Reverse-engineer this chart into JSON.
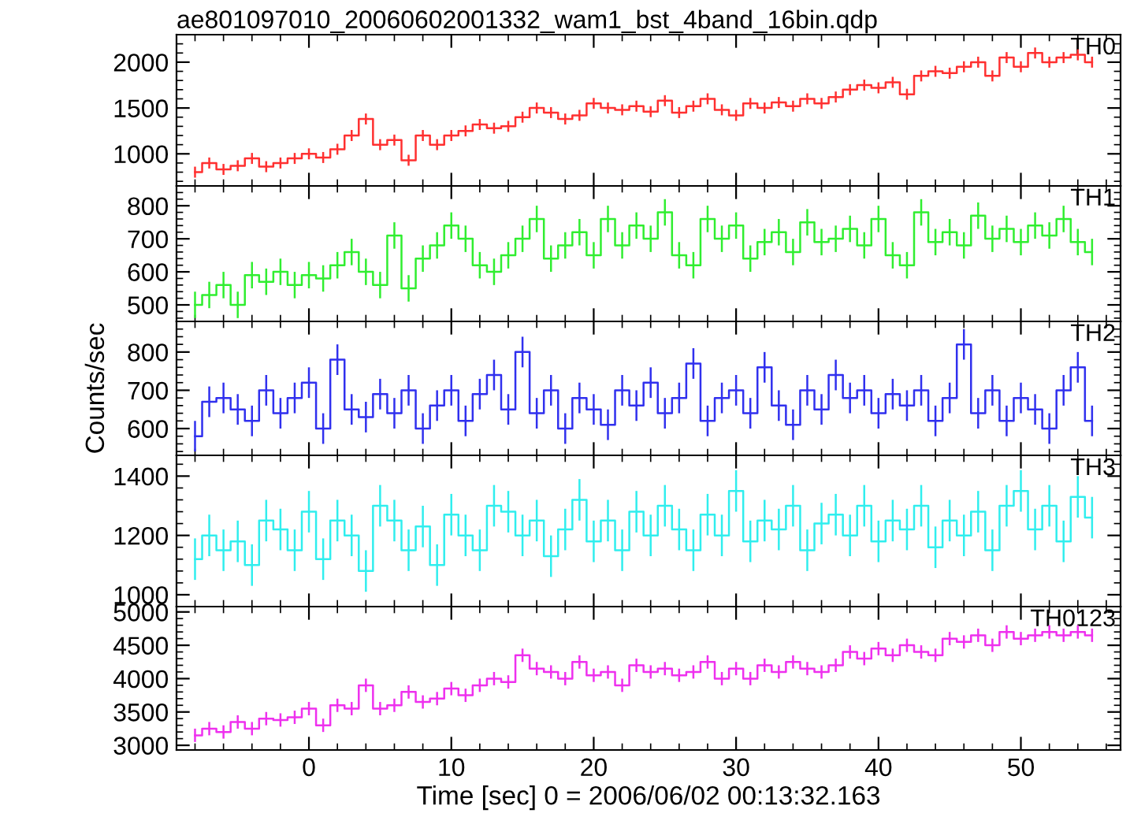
{
  "chart_data": [
    {
      "type": "step",
      "title": "ae801097010_20060602001332_wam1_bst_4band_16bin.qdp",
      "x": [
        -8,
        -7,
        -6,
        -5,
        -4,
        -3,
        -2,
        -1,
        0,
        1,
        2,
        3,
        4,
        5,
        6,
        7,
        8,
        9,
        10,
        11,
        12,
        13,
        14,
        15,
        16,
        17,
        18,
        19,
        20,
        21,
        22,
        23,
        24,
        25,
        26,
        27,
        28,
        29,
        30,
        31,
        32,
        33,
        34,
        35,
        36,
        37,
        38,
        39,
        40,
        41,
        42,
        43,
        44,
        45,
        46,
        47,
        48,
        49,
        50,
        51,
        52,
        53,
        54,
        55
      ],
      "xlim": [
        -9.3,
        57
      ],
      "xticks": [
        0,
        10,
        20,
        30,
        40,
        50
      ],
      "ylim": [
        650,
        2300
      ],
      "yticks": [
        1000,
        1500,
        2000
      ],
      "tick_labels": "y",
      "series": [
        {
          "name": "TH0",
          "color": "#ff3030",
          "values": [
            800,
            900,
            830,
            870,
            950,
            860,
            900,
            950,
            1000,
            960,
            1050,
            1200,
            1380,
            1100,
            1150,
            930,
            1200,
            1100,
            1200,
            1250,
            1320,
            1280,
            1300,
            1400,
            1500,
            1450,
            1380,
            1420,
            1550,
            1500,
            1480,
            1520,
            1460,
            1580,
            1450,
            1520,
            1600,
            1480,
            1420,
            1550,
            1500,
            1560,
            1520,
            1600,
            1550,
            1620,
            1700,
            1750,
            1720,
            1780,
            1650,
            1850,
            1900,
            1880,
            1950,
            2000,
            1850,
            2050,
            1950,
            2100,
            2000,
            2050,
            2080,
            2000
          ],
          "errors": [
            60,
            60,
            60,
            60,
            60,
            60,
            60,
            60,
            60,
            60,
            60,
            60,
            60,
            60,
            60,
            60,
            60,
            60,
            60,
            60,
            60,
            60,
            60,
            60,
            60,
            60,
            60,
            60,
            60,
            60,
            60,
            60,
            60,
            60,
            60,
            60,
            60,
            60,
            60,
            60,
            60,
            60,
            60,
            60,
            60,
            60,
            60,
            60,
            60,
            60,
            60,
            60,
            60,
            60,
            60,
            60,
            60,
            60,
            60,
            60,
            60,
            60,
            60,
            60
          ]
        }
      ]
    },
    {
      "type": "step",
      "x": [
        -8,
        -7,
        -6,
        -5,
        -4,
        -3,
        -2,
        -1,
        0,
        1,
        2,
        3,
        4,
        5,
        6,
        7,
        8,
        9,
        10,
        11,
        12,
        13,
        14,
        15,
        16,
        17,
        18,
        19,
        20,
        21,
        22,
        23,
        24,
        25,
        26,
        27,
        28,
        29,
        30,
        31,
        32,
        33,
        34,
        35,
        36,
        37,
        38,
        39,
        40,
        41,
        42,
        43,
        44,
        45,
        46,
        47,
        48,
        49,
        50,
        51,
        52,
        53,
        54,
        55
      ],
      "xlim": [
        -9.3,
        57
      ],
      "xticks": [
        0,
        10,
        20,
        30,
        40,
        50
      ],
      "ylim": [
        450,
        860
      ],
      "yticks": [
        500,
        600,
        700,
        800
      ],
      "tick_labels": "y",
      "series": [
        {
          "name": "TH1",
          "color": "#30ee30",
          "values": [
            500,
            530,
            560,
            500,
            590,
            570,
            600,
            560,
            590,
            580,
            620,
            660,
            600,
            560,
            710,
            550,
            640,
            680,
            740,
            700,
            620,
            600,
            650,
            700,
            760,
            640,
            680,
            720,
            650,
            760,
            680,
            740,
            700,
            780,
            650,
            620,
            760,
            700,
            740,
            640,
            690,
            720,
            660,
            750,
            690,
            700,
            730,
            680,
            760,
            650,
            620,
            780,
            690,
            720,
            680,
            770,
            700,
            730,
            690,
            740,
            710,
            760,
            690,
            660
          ],
          "errors": [
            40,
            40,
            40,
            40,
            40,
            40,
            40,
            40,
            40,
            40,
            40,
            40,
            40,
            40,
            40,
            40,
            40,
            40,
            40,
            40,
            40,
            40,
            40,
            40,
            40,
            40,
            40,
            40,
            40,
            40,
            40,
            40,
            40,
            40,
            40,
            40,
            40,
            40,
            40,
            40,
            40,
            40,
            40,
            40,
            40,
            40,
            40,
            40,
            40,
            40,
            40,
            40,
            40,
            40,
            40,
            40,
            40,
            40,
            40,
            40,
            40,
            40,
            40,
            40
          ]
        }
      ]
    },
    {
      "type": "step",
      "ylabel": "Counts/sec",
      "x": [
        -8,
        -7,
        -6,
        -5,
        -4,
        -3,
        -2,
        -1,
        0,
        1,
        2,
        3,
        4,
        5,
        6,
        7,
        8,
        9,
        10,
        11,
        12,
        13,
        14,
        15,
        16,
        17,
        18,
        19,
        20,
        21,
        22,
        23,
        24,
        25,
        26,
        27,
        28,
        29,
        30,
        31,
        32,
        33,
        34,
        35,
        36,
        37,
        38,
        39,
        40,
        41,
        42,
        43,
        44,
        45,
        46,
        47,
        48,
        49,
        50,
        51,
        52,
        53,
        54,
        55
      ],
      "xlim": [
        -9.3,
        57
      ],
      "xticks": [
        0,
        10,
        20,
        30,
        40,
        50
      ],
      "ylim": [
        530,
        880
      ],
      "yticks": [
        600,
        700,
        800
      ],
      "tick_labels": "y",
      "series": [
        {
          "name": "TH2",
          "color": "#3030ee",
          "values": [
            580,
            670,
            680,
            650,
            620,
            700,
            640,
            680,
            720,
            600,
            780,
            650,
            630,
            690,
            640,
            700,
            600,
            660,
            700,
            620,
            690,
            740,
            650,
            800,
            640,
            700,
            600,
            680,
            650,
            610,
            700,
            660,
            720,
            640,
            680,
            770,
            620,
            680,
            700,
            640,
            760,
            660,
            610,
            700,
            650,
            740,
            680,
            700,
            640,
            690,
            660,
            700,
            620,
            680,
            820,
            640,
            700,
            620,
            680,
            650,
            600,
            700,
            760,
            620
          ],
          "errors": [
            40,
            40,
            40,
            40,
            40,
            40,
            40,
            40,
            40,
            40,
            40,
            40,
            40,
            40,
            40,
            40,
            40,
            40,
            40,
            40,
            40,
            40,
            40,
            40,
            40,
            40,
            40,
            40,
            40,
            40,
            40,
            40,
            40,
            40,
            40,
            40,
            40,
            40,
            40,
            40,
            40,
            40,
            40,
            40,
            40,
            40,
            40,
            40,
            40,
            40,
            40,
            40,
            40,
            40,
            40,
            40,
            40,
            40,
            40,
            40,
            40,
            40,
            40,
            40
          ]
        }
      ]
    },
    {
      "type": "step",
      "x": [
        -8,
        -7,
        -6,
        -5,
        -4,
        -3,
        -2,
        -1,
        0,
        1,
        2,
        3,
        4,
        5,
        6,
        7,
        8,
        9,
        10,
        11,
        12,
        13,
        14,
        15,
        16,
        17,
        18,
        19,
        20,
        21,
        22,
        23,
        24,
        25,
        26,
        27,
        28,
        29,
        30,
        31,
        32,
        33,
        34,
        35,
        36,
        37,
        38,
        39,
        40,
        41,
        42,
        43,
        44,
        45,
        46,
        47,
        48,
        49,
        50,
        51,
        52,
        53,
        54,
        55
      ],
      "xlim": [
        -9.3,
        57
      ],
      "xticks": [
        0,
        10,
        20,
        30,
        40,
        50
      ],
      "ylim": [
        960,
        1470
      ],
      "yticks": [
        1000,
        1200,
        1400
      ],
      "tick_labels": "y",
      "series": [
        {
          "name": "TH3",
          "color": "#30eeee",
          "values": [
            1120,
            1200,
            1150,
            1180,
            1100,
            1250,
            1220,
            1150,
            1280,
            1120,
            1250,
            1200,
            1080,
            1300,
            1250,
            1150,
            1230,
            1100,
            1270,
            1200,
            1150,
            1300,
            1280,
            1200,
            1250,
            1130,
            1220,
            1320,
            1180,
            1250,
            1150,
            1280,
            1200,
            1300,
            1220,
            1150,
            1270,
            1200,
            1350,
            1180,
            1250,
            1220,
            1300,
            1150,
            1240,
            1270,
            1200,
            1300,
            1180,
            1250,
            1220,
            1300,
            1160,
            1250,
            1200,
            1280,
            1150,
            1300,
            1350,
            1220,
            1300,
            1180,
            1330,
            1260
          ],
          "errors": [
            70,
            70,
            70,
            70,
            70,
            70,
            70,
            70,
            70,
            70,
            70,
            70,
            70,
            70,
            70,
            70,
            70,
            70,
            70,
            70,
            70,
            70,
            70,
            70,
            70,
            70,
            70,
            70,
            70,
            70,
            70,
            70,
            70,
            70,
            70,
            70,
            70,
            70,
            70,
            70,
            70,
            70,
            70,
            70,
            70,
            70,
            70,
            70,
            70,
            70,
            70,
            70,
            70,
            70,
            70,
            70,
            70,
            70,
            70,
            70,
            70,
            70,
            70,
            70
          ]
        }
      ]
    },
    {
      "type": "step",
      "xlabel": "Time [sec] 0 = 2006/06/02 00:13:32.163",
      "x": [
        -8,
        -7,
        -6,
        -5,
        -4,
        -3,
        -2,
        -1,
        0,
        1,
        2,
        3,
        4,
        5,
        6,
        7,
        8,
        9,
        10,
        11,
        12,
        13,
        14,
        15,
        16,
        17,
        18,
        19,
        20,
        21,
        22,
        23,
        24,
        25,
        26,
        27,
        28,
        29,
        30,
        31,
        32,
        33,
        34,
        35,
        36,
        37,
        38,
        39,
        40,
        41,
        42,
        43,
        44,
        45,
        46,
        47,
        48,
        49,
        50,
        51,
        52,
        53,
        54,
        55
      ],
      "xlim": [
        -9.3,
        57
      ],
      "xticks": [
        0,
        10,
        20,
        30,
        40,
        50
      ],
      "ylim": [
        2930,
        5080
      ],
      "yticks": [
        3000,
        3500,
        4000,
        4500,
        5000
      ],
      "series": [
        {
          "name": "TH0123",
          "color": "#ee30ee",
          "values": [
            3150,
            3250,
            3200,
            3350,
            3250,
            3400,
            3380,
            3420,
            3550,
            3300,
            3600,
            3550,
            3900,
            3550,
            3600,
            3800,
            3650,
            3700,
            3850,
            3750,
            3900,
            4000,
            3950,
            4350,
            4150,
            4100,
            4000,
            4250,
            4050,
            4100,
            3900,
            4200,
            4100,
            4150,
            4050,
            4100,
            4250,
            4000,
            4150,
            4000,
            4200,
            4100,
            4250,
            4150,
            4100,
            4200,
            4400,
            4300,
            4450,
            4350,
            4500,
            4400,
            4350,
            4600,
            4550,
            4650,
            4500,
            4700,
            4600,
            4650,
            4700,
            4650,
            4700,
            4650
          ],
          "errors": [
            100,
            100,
            100,
            100,
            100,
            100,
            100,
            100,
            100,
            100,
            100,
            100,
            100,
            100,
            100,
            100,
            100,
            100,
            100,
            100,
            100,
            100,
            100,
            100,
            100,
            100,
            100,
            100,
            100,
            100,
            100,
            100,
            100,
            100,
            100,
            100,
            100,
            100,
            100,
            100,
            100,
            100,
            100,
            100,
            100,
            100,
            100,
            100,
            100,
            100,
            100,
            100,
            100,
            100,
            100,
            100,
            100,
            100,
            100,
            100,
            100,
            100,
            100,
            100
          ]
        }
      ]
    }
  ]
}
